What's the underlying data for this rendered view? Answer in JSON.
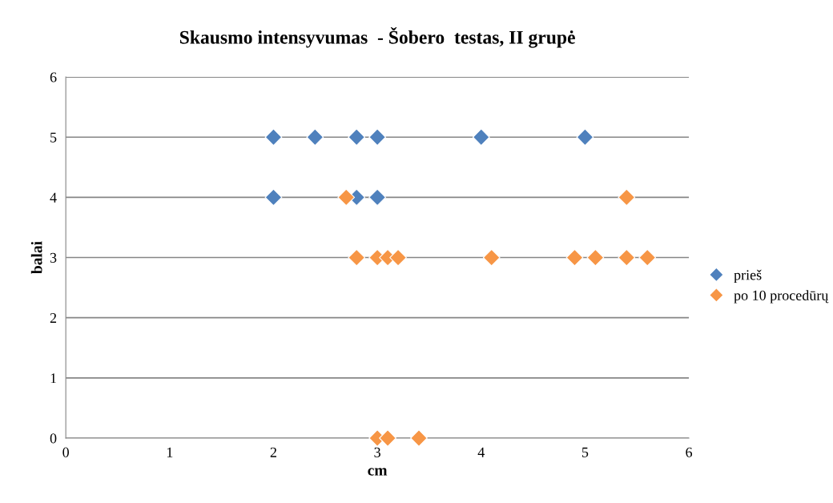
{
  "chart_data": {
    "type": "scatter",
    "title": "Skausmo intensyvumas  - Šobero  testas, II grupė",
    "xlabel": "cm",
    "ylabel": "balai",
    "series": [
      {
        "name": "prieš",
        "color": "#4f81bd",
        "x": [
          2.0,
          2.4,
          2.8,
          3.0,
          4.0,
          5.0,
          2.0,
          2.8,
          3.0
        ],
        "values": [
          5,
          5,
          5,
          5,
          5,
          5,
          4,
          4,
          4
        ]
      },
      {
        "name": "po 10 procedūrų",
        "color": "#f79646",
        "x": [
          2.7,
          5.4,
          2.8,
          3.0,
          3.1,
          3.2,
          4.1,
          4.9,
          5.1,
          5.4,
          5.6,
          3.0,
          3.1,
          3.4
        ],
        "values": [
          4,
          4,
          3,
          3,
          3,
          3,
          3,
          3,
          3,
          3,
          3,
          0,
          0,
          0
        ]
      }
    ],
    "xlim": [
      0,
      6
    ],
    "xticks": [
      0,
      1,
      2,
      3,
      4,
      5,
      6
    ],
    "ylim": [
      0,
      6
    ],
    "yticks": [
      0,
      1,
      2,
      3,
      4,
      5,
      6
    ],
    "grid": "y",
    "legend": "right",
    "marker": "diamond"
  }
}
